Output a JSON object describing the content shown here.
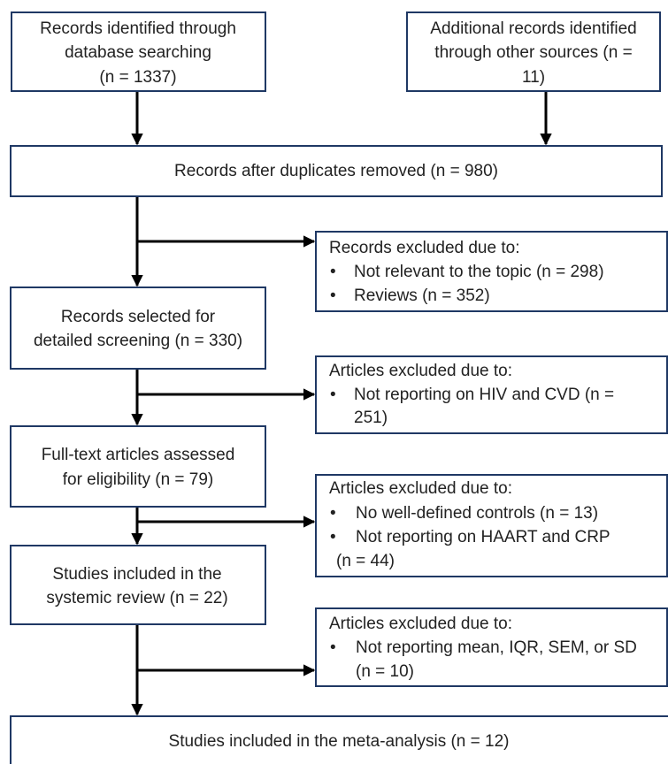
{
  "boxes": [
    {
      "lines": [
        "Records identified through",
        "database searching",
        "(n = 1337)"
      ]
    },
    {
      "lines": [
        "Additional records identified",
        "through other sources (n =",
        "11)"
      ]
    },
    {
      "lines": [
        "Records after duplicates removed (n = 980)"
      ]
    },
    {
      "heading": "Records excluded due to:",
      "items": [
        [
          "Not relevant to the topic (n = 298)"
        ],
        [
          "Reviews (n = 352)"
        ]
      ]
    },
    {
      "lines": [
        "Records selected for",
        "detailed screening (n = 330)"
      ]
    },
    {
      "heading": "Articles excluded due to:",
      "items": [
        [
          "Not reporting on HIV and CVD (n =",
          "251)"
        ]
      ]
    },
    {
      "lines": [
        "Full-text articles assessed",
        "for eligibility (n = 79)"
      ]
    },
    {
      "heading": "Articles excluded due to:",
      "items": [
        [
          "No well-defined controls (n = 13)"
        ],
        [
          "Not reporting on HAART and CRP",
          "(n = 44)"
        ]
      ]
    },
    {
      "lines": [
        "Studies included in the",
        "systemic review (n = 22)"
      ]
    },
    {
      "heading": "Articles excluded due to:",
      "items": [
        [
          "Not reporting mean, IQR, SEM, or SD",
          "(n = 10)"
        ]
      ]
    },
    {
      "lines": [
        "Studies included in the meta-analysis (n = 12)"
      ]
    }
  ]
}
